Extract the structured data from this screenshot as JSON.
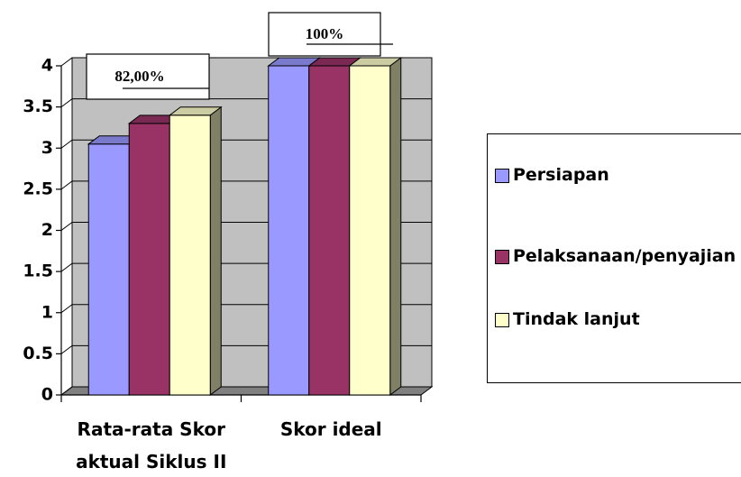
{
  "chart_data": {
    "type": "bar3d",
    "categories": [
      "Rata-rata Skor aktual Siklus II",
      "Skor ideal"
    ],
    "series": [
      {
        "name": "Persiapan",
        "color": "#9999ff",
        "values": [
          3.05,
          4
        ]
      },
      {
        "name": "Pelaksanaan/penyajian",
        "color": "#993366",
        "values": [
          3.3,
          4
        ]
      },
      {
        "name": "Tindak lanjut",
        "color": "#ffffcc",
        "values": [
          3.4,
          4
        ]
      }
    ],
    "annotations": [
      "82,00%",
      "100%"
    ],
    "ylim": [
      0,
      4
    ],
    "yticks": [
      0,
      0.5,
      1,
      1.5,
      2,
      2.5,
      3,
      3.5,
      4
    ],
    "grid": true,
    "wall_color": "#c0c0c0",
    "legend": "right"
  }
}
